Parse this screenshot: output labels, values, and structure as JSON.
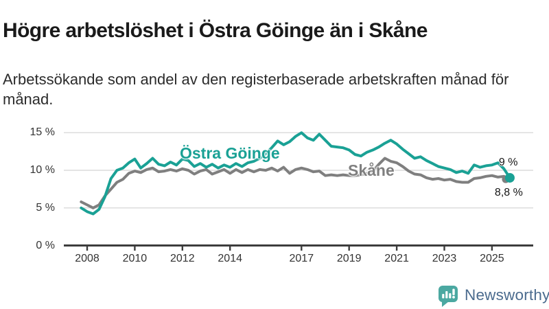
{
  "header": {
    "title": "Högre arbetslöshet i Östra Göinge än i Skåne",
    "subtitle": "Arbetssökande som andel av den registerbaserade arbetskraften månad för månad."
  },
  "chart_data": {
    "type": "line",
    "unit": "%",
    "x_start": 2007.75,
    "x_step": 0.25,
    "x_axis_ticks": [
      {
        "year": 2008,
        "label": "2008"
      },
      {
        "year": 2010,
        "label": "2010"
      },
      {
        "year": 2012,
        "label": "2012"
      },
      {
        "year": 2014,
        "label": "2014"
      },
      {
        "year": 2017,
        "label": "2017"
      },
      {
        "year": 2019,
        "label": "2019"
      },
      {
        "year": 2021,
        "label": "2021"
      },
      {
        "year": 2023,
        "label": "2023"
      },
      {
        "year": 2025,
        "label": "2025"
      }
    ],
    "y_axis_ticks": [
      {
        "value": 0,
        "label": "0 %"
      },
      {
        "value": 5,
        "label": "5 %"
      },
      {
        "value": 10,
        "label": "10 %"
      },
      {
        "value": 15,
        "label": "15 %"
      }
    ],
    "y_range": [
      0,
      16.5
    ],
    "grid_color": "#dcdcdc",
    "axis_color": "#3c3c3c",
    "series": [
      {
        "name": "Östra Göinge",
        "color": "#1aa195",
        "end_label": "9 %",
        "end_value": 9.0,
        "values": [
          5.0,
          4.5,
          4.2,
          4.8,
          6.5,
          8.9,
          10.0,
          10.3,
          11.0,
          11.5,
          10.3,
          10.9,
          11.6,
          10.8,
          10.6,
          11.1,
          10.7,
          11.5,
          11.3,
          10.5,
          10.9,
          10.4,
          10.8,
          10.3,
          10.7,
          10.4,
          10.9,
          10.5,
          11.0,
          11.2,
          11.6,
          12.2,
          13.0,
          13.9,
          13.4,
          13.8,
          14.5,
          15.0,
          14.3,
          14.0,
          14.8,
          14.0,
          13.2,
          13.1,
          13.0,
          12.7,
          12.1,
          11.9,
          12.4,
          12.7,
          13.1,
          13.6,
          14.0,
          13.5,
          12.8,
          12.2,
          11.6,
          11.8,
          11.3,
          10.9,
          10.5,
          10.3,
          10.1,
          9.7,
          9.9,
          9.6,
          10.7,
          10.4,
          10.6,
          10.7,
          11.0,
          10.2,
          9.0
        ]
      },
      {
        "name": "Skåne",
        "color": "#7f7f7f",
        "end_label": "8,8 %",
        "end_value": 8.8,
        "values": [
          5.8,
          5.4,
          5.0,
          5.4,
          6.6,
          7.5,
          8.4,
          8.8,
          9.6,
          9.9,
          9.7,
          10.1,
          10.3,
          9.8,
          9.9,
          10.1,
          9.9,
          10.2,
          10.0,
          9.5,
          9.9,
          10.1,
          9.5,
          9.8,
          10.1,
          9.6,
          10.1,
          9.7,
          10.1,
          9.8,
          10.1,
          10.0,
          10.3,
          9.9,
          10.4,
          9.6,
          10.1,
          10.3,
          10.1,
          9.8,
          9.9,
          9.3,
          9.4,
          9.3,
          9.4,
          9.3,
          9.3,
          9.4,
          9.6,
          9.9,
          10.8,
          11.6,
          11.2,
          11.0,
          10.5,
          9.9,
          9.5,
          9.4,
          9.0,
          8.8,
          8.9,
          8.7,
          8.8,
          8.5,
          8.4,
          8.4,
          8.9,
          9.0,
          9.2,
          9.3,
          9.1,
          9.2,
          8.8
        ]
      }
    ]
  },
  "footer": {
    "brand": "Newsworthy",
    "brand_color": "#4b6b8e",
    "logo_color": "#4ba8a1"
  }
}
